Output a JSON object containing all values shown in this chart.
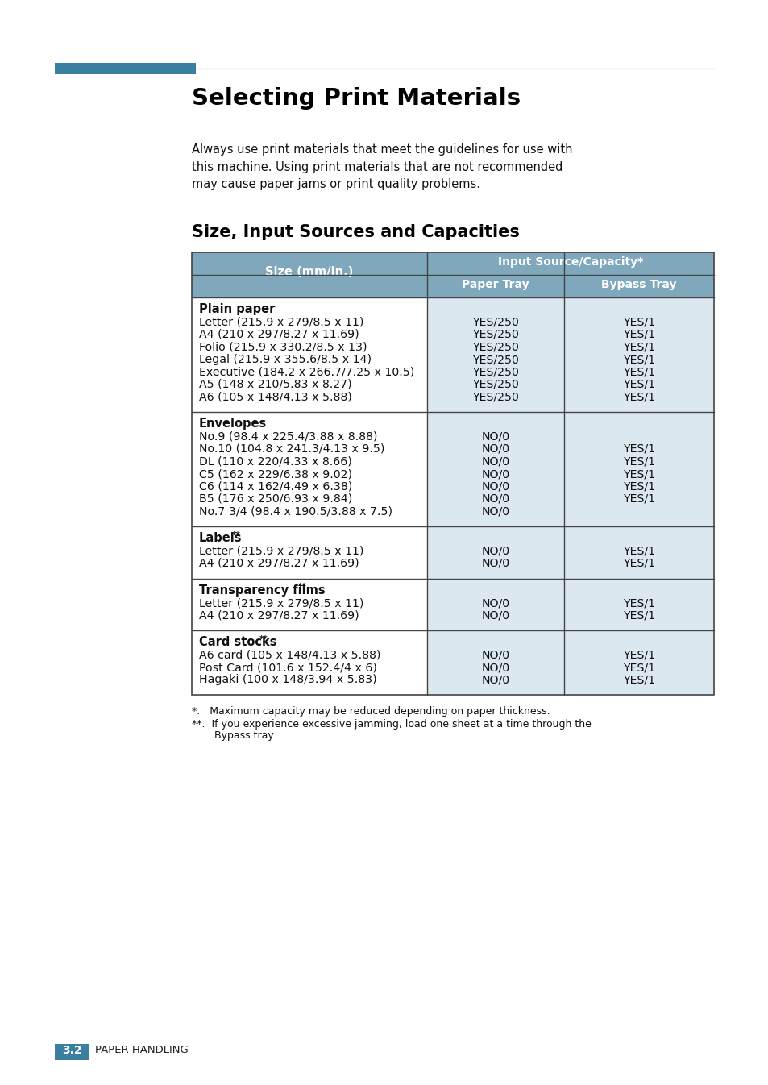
{
  "title": "Selecting Print Materials",
  "subtitle2": "Size, Input Sources and Capacities",
  "intro_text": "Always use print materials that meet the guidelines for use with\nthis machine. Using print materials that are not recommended\nmay cause paper jams or print quality problems.",
  "header_bg": "#7fa8bc",
  "row_bg_light": "#dce8f0",
  "row_bg_white": "#ffffff",
  "border_color": "#444444",
  "col1_header": "Size (mm/in.)",
  "col2_header": "Input Source/Capacity",
  "col3_header": "Paper Tray",
  "col4_header": "Bypass Tray",
  "sections": [
    {
      "category": "Plain paper",
      "superscript": "",
      "items": [
        "Letter (215.9 x 279/8.5 x 11)",
        "A4 (210 x 297/8.27 x 11.69)",
        "Folio (215.9 x 330.2/8.5 x 13)",
        "Legal (215.9 x 355.6/8.5 x 14)",
        "Executive (184.2 x 266.7/7.25 x 10.5)",
        "A5 (148 x 210/5.83 x 8.27)",
        "A6 (105 x 148/4.13 x 5.88)"
      ],
      "paper_tray": [
        "YES/250",
        "YES/250",
        "YES/250",
        "YES/250",
        "YES/250",
        "YES/250",
        "YES/250"
      ],
      "bypass_tray": [
        "YES/1",
        "YES/1",
        "YES/1",
        "YES/1",
        "YES/1",
        "YES/1",
        "YES/1"
      ]
    },
    {
      "category": "Envelopes",
      "superscript": "",
      "items": [
        "No.9 (98.4 x 225.4/3.88 x 8.88)",
        "No.10 (104.8 x 241.3/4.13 x 9.5)",
        "DL (110 x 220/4.33 x 8.66)",
        "C5 (162 x 229/6.38 x 9.02)",
        "C6 (114 x 162/4.49 x 6.38)",
        "B5 (176 x 250/6.93 x 9.84)",
        "No.7 3/4 (98.4 x 190.5/3.88 x 7.5)"
      ],
      "paper_tray": [
        "NO/0",
        "NO/0",
        "NO/0",
        "NO/0",
        "NO/0",
        "NO/0",
        "NO/0"
      ],
      "bypass_tray": [
        "",
        "YES/1",
        "YES/1",
        "YES/1",
        "YES/1",
        "YES/1",
        ""
      ]
    },
    {
      "category": "Labels",
      "superscript": "**",
      "items": [
        "Letter (215.9 x 279/8.5 x 11)",
        "A4 (210 x 297/8.27 x 11.69)"
      ],
      "paper_tray": [
        "NO/0",
        "NO/0"
      ],
      "bypass_tray": [
        "YES/1",
        "YES/1"
      ]
    },
    {
      "category": "Transparency films",
      "superscript": "**",
      "items": [
        "Letter (215.9 x 279/8.5 x 11)",
        "A4 (210 x 297/8.27 x 11.69)"
      ],
      "paper_tray": [
        "NO/0",
        "NO/0"
      ],
      "bypass_tray": [
        "YES/1",
        "YES/1"
      ]
    },
    {
      "category": "Card stocks",
      "superscript": "**",
      "items": [
        "A6 card (105 x 148/4.13 x 5.88)",
        "Post Card (101.6 x 152.4/4 x 6)",
        "Hagaki (100 x 148/3.94 x 5.83)"
      ],
      "paper_tray": [
        "NO/0",
        "NO/0",
        "NO/0"
      ],
      "bypass_tray": [
        "YES/1",
        "YES/1",
        "YES/1"
      ]
    }
  ],
  "footnote1": "*.   Maximum capacity may be reduced depending on paper thickness.",
  "footnote2a": "**.  If you experience excessive jamming, load one sheet at a time through the",
  "footnote2b": "       Bypass tray.",
  "footer_label": "3.2",
  "footer_text": "PAPER HANDLING",
  "page_bg": "#ffffff",
  "accent_color": "#3a7fa0",
  "line_color": "#5b9bb5"
}
